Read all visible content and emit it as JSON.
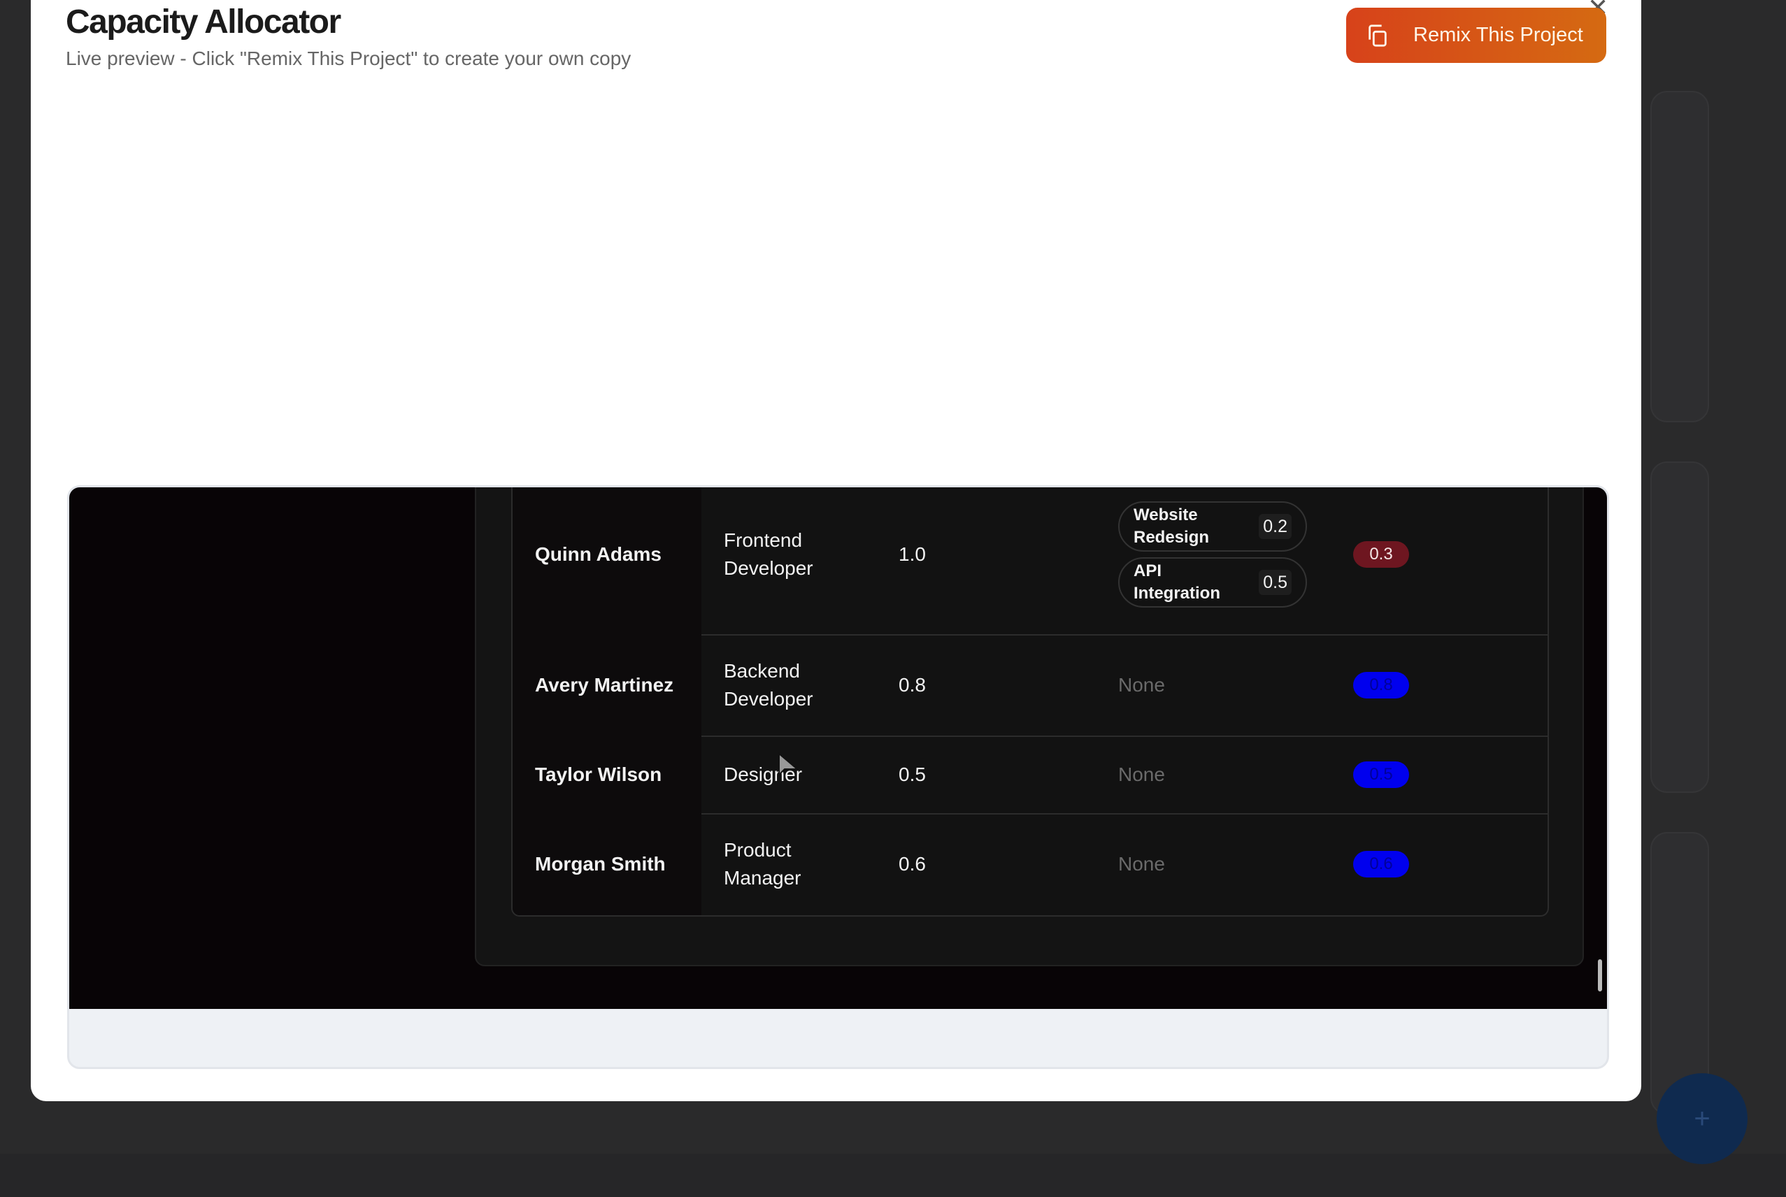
{
  "modal": {
    "title": "Capacity Allocator",
    "subtitle": "Live preview - Click \"Remix This Project\" to create your own copy",
    "remix_label": "Remix This Project",
    "close_icon": "x-icon"
  },
  "colors": {
    "remix_start": "#d7421a",
    "remix_end": "#d56a12",
    "over_badge": "#6e1620",
    "ok_badge": "#0000ee"
  },
  "table": {
    "rows": [
      {
        "name": "Quinn Adams",
        "role": "Frontend Developer",
        "capacity": "1.0",
        "allocations": [
          {
            "project": "Website Redesign",
            "amount": "0.2"
          },
          {
            "project": "API Integration",
            "amount": "0.5"
          }
        ],
        "remaining": "0.3",
        "status": "over"
      },
      {
        "name": "Avery Martinez",
        "role": "Backend Developer",
        "capacity": "0.8",
        "none_label": "None",
        "remaining": "0.8",
        "status": "ok"
      },
      {
        "name": "Taylor Wilson",
        "role": "Designer",
        "capacity": "0.5",
        "none_label": "None",
        "remaining": "0.5",
        "status": "ok"
      },
      {
        "name": "Morgan Smith",
        "role": "Product Manager",
        "capacity": "0.6",
        "none_label": "None",
        "remaining": "0.6",
        "status": "ok"
      }
    ]
  },
  "fab_label": "+"
}
